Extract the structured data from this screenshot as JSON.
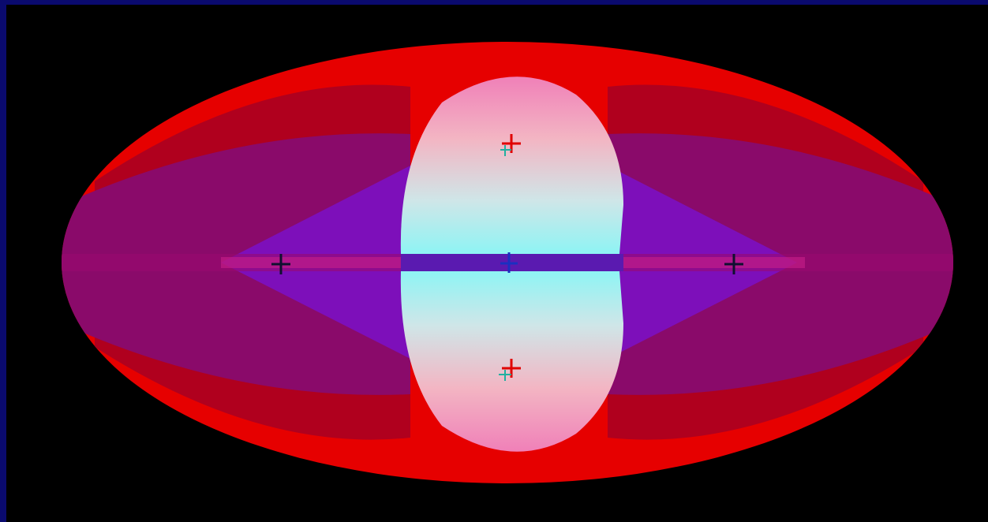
{
  "colors": {
    "background": "#000000",
    "frame": "#0a0a6e",
    "outer": "#e60000",
    "band": "#b0001e",
    "inner": "#8a0a6a",
    "purple": "#7a10c8",
    "lobe_top": "#f3b3c2",
    "lobe_cyan": "#a8f4f2",
    "marker_red": "#e00000",
    "marker_teal": "#20b0a0",
    "marker_dark": "#101030",
    "marker_blue": "#1a30c0"
  },
  "markers": [
    {
      "name": "marker-top-lobe-center"
    },
    {
      "name": "marker-bottom-lobe-center"
    },
    {
      "name": "marker-center"
    },
    {
      "name": "marker-left"
    },
    {
      "name": "marker-right"
    }
  ]
}
